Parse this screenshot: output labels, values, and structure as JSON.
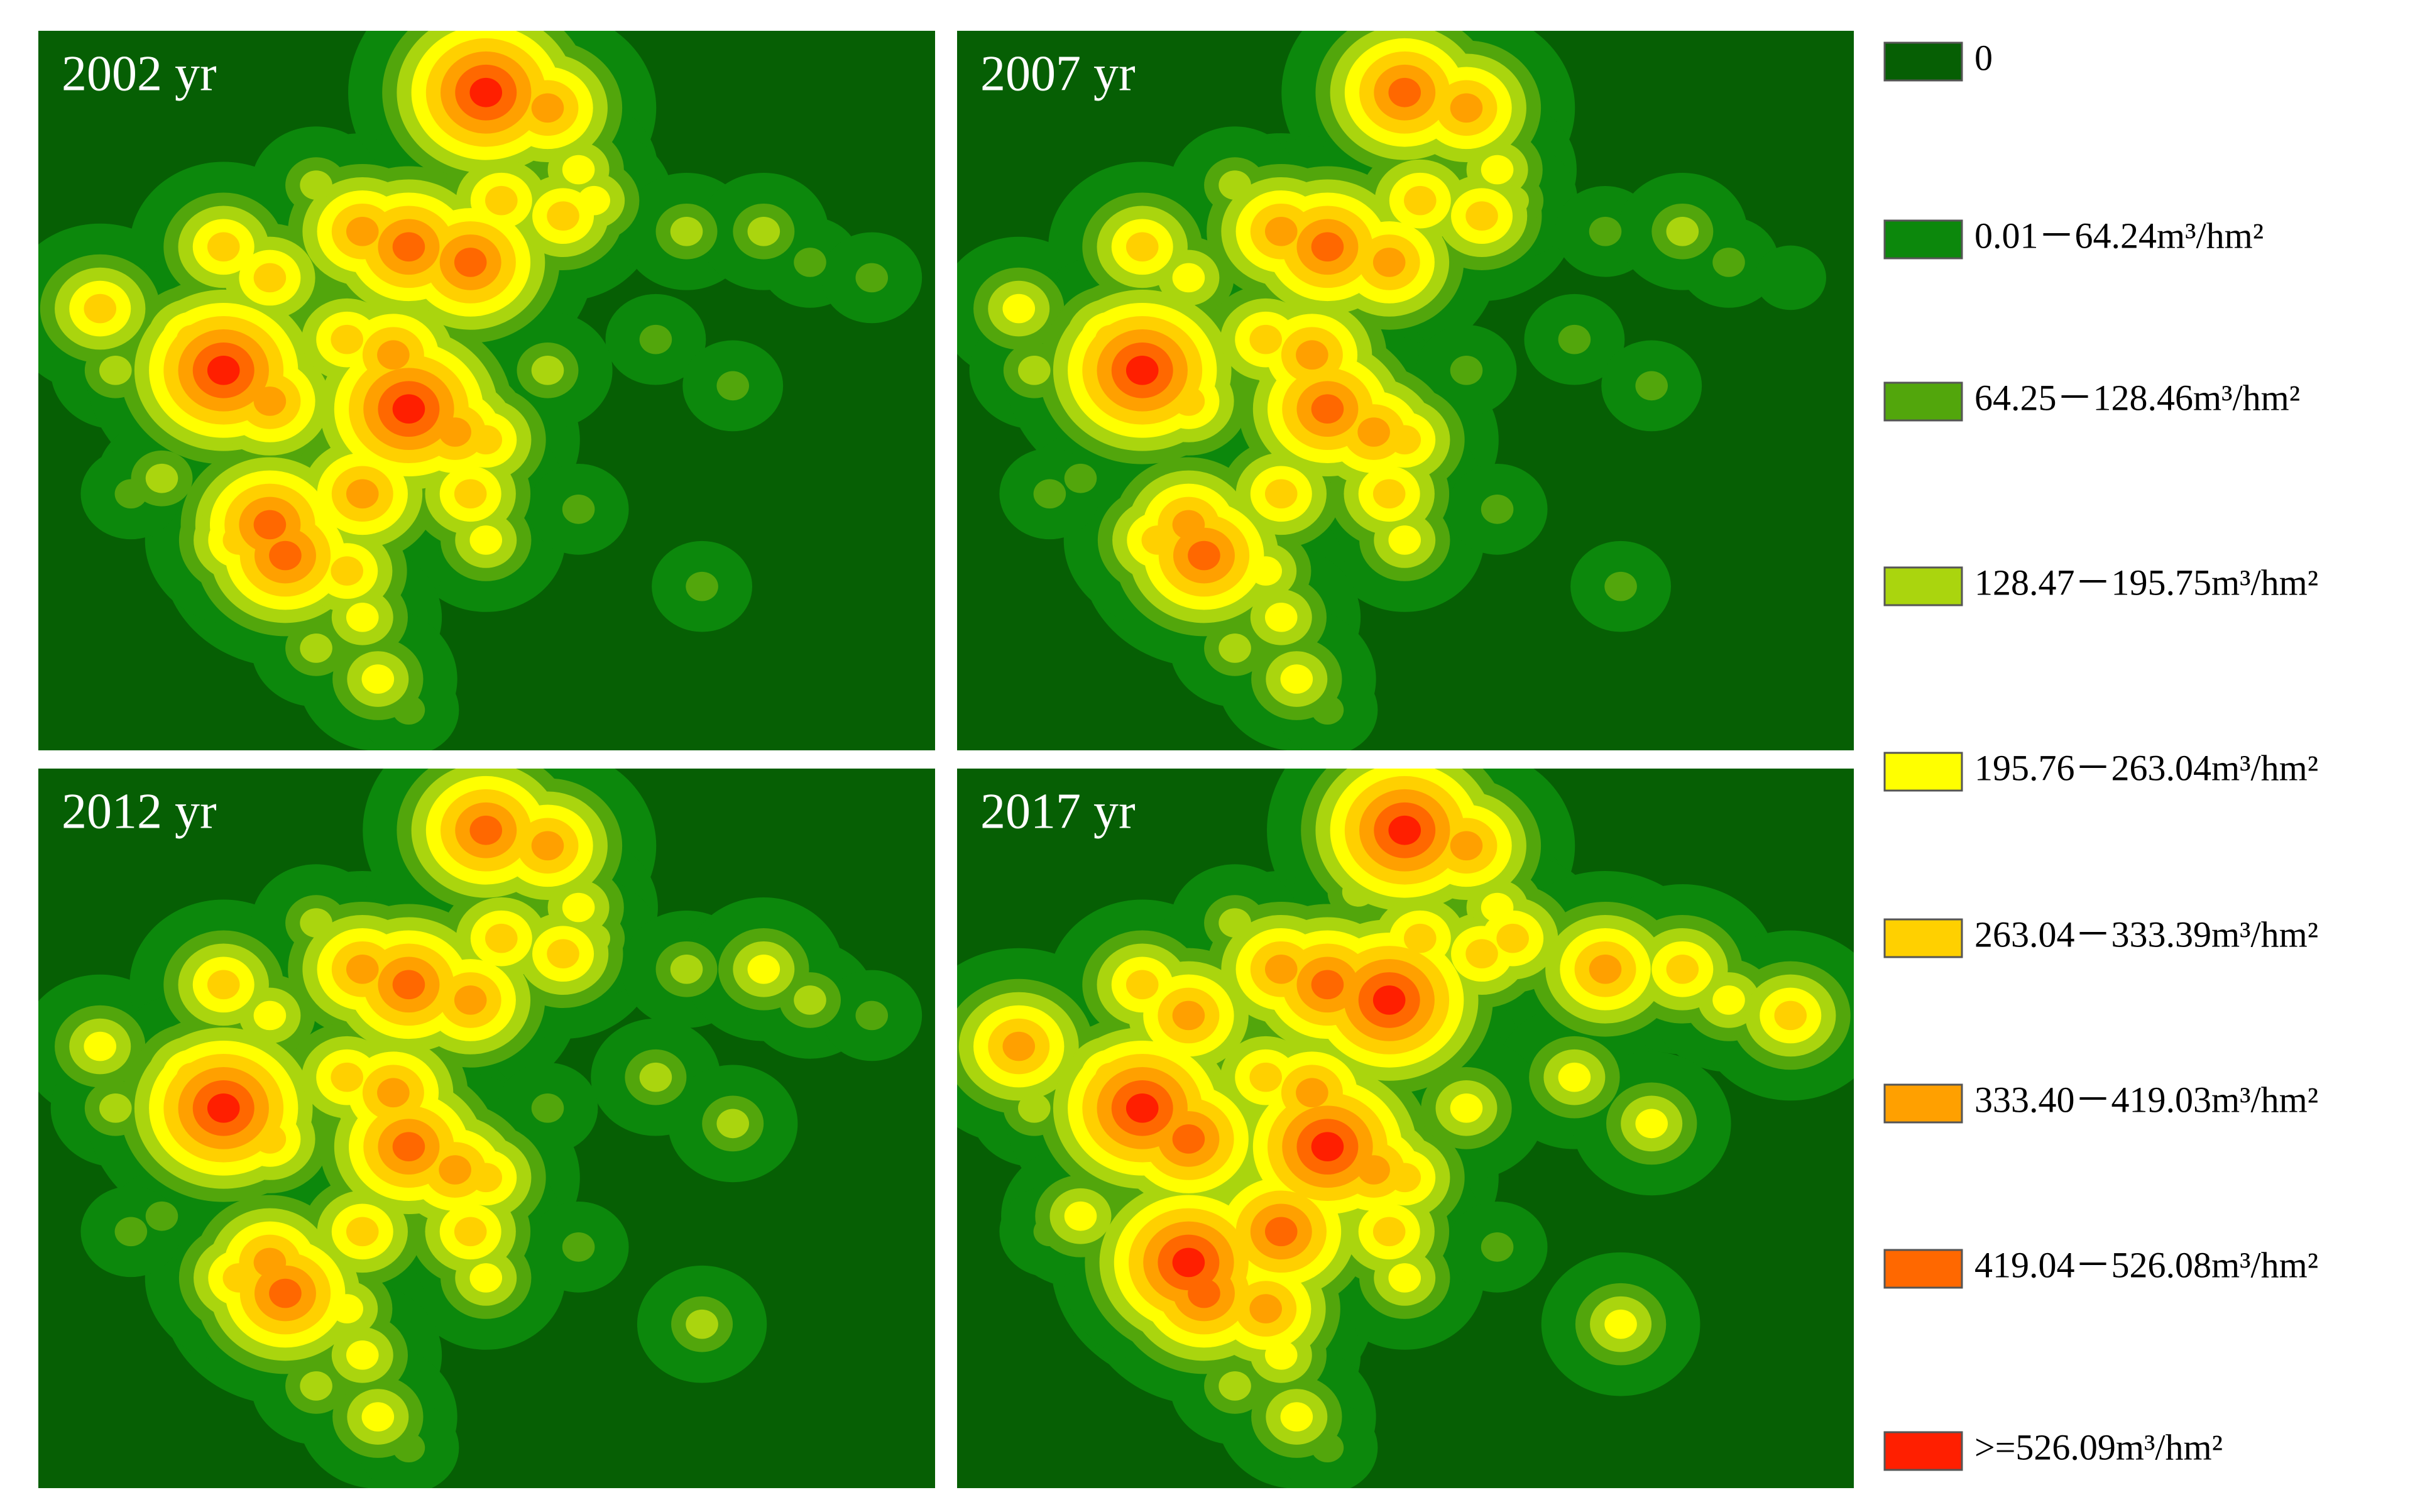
{
  "panels": [
    {
      "label": "2002 yr"
    },
    {
      "label": "2007 yr"
    },
    {
      "label": "2012 yr"
    },
    {
      "label": "2017 yr"
    }
  ],
  "legend": [
    {
      "label": "0",
      "color": "#065f04"
    },
    {
      "label": "0.01－64.24m³/hm²",
      "color": "#0c880c"
    },
    {
      "label": "64.25－128.46m³/hm²",
      "color": "#52a60c"
    },
    {
      "label": "128.47－195.75m³/hm²",
      "color": "#aad50e"
    },
    {
      "label": "195.76－263.04m³/hm²",
      "color": "#ffff00"
    },
    {
      "label": "263.04－333.39m³/hm²",
      "color": "#ffd000"
    },
    {
      "label": "333.40－419.03m³/hm²",
      "color": "#ffa000"
    },
    {
      "label": "419.04－526.08m³/hm²",
      "color": "#ff6800"
    },
    {
      "label": ">=526.09m³/hm²",
      "color": "#ff1f00"
    }
  ]
}
